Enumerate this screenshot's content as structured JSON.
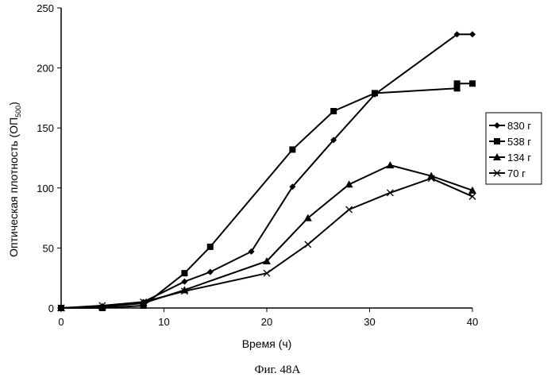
{
  "chart_data": {
    "type": "line",
    "xlabel": "Время (ч)",
    "ylabel_main": "Оптическая плотность (ОП",
    "ylabel_sub": "500",
    "ylabel_end": ")",
    "xlim": [
      0,
      40
    ],
    "ylim": [
      0,
      250
    ],
    "xticks": [
      0,
      10,
      20,
      30,
      40
    ],
    "yticks": [
      0,
      50,
      100,
      150,
      200,
      250
    ],
    "grid": false,
    "legend_position": "right",
    "series": [
      {
        "name": "830 г",
        "marker": "diamond",
        "x": [
          0,
          4,
          8,
          12,
          14.5,
          18.5,
          22.5,
          26.5,
          30.5,
          38.5,
          40
        ],
        "y": [
          0,
          1,
          5,
          22,
          30,
          47,
          101,
          140,
          178,
          228,
          228
        ]
      },
      {
        "name": "538 г",
        "marker": "square",
        "x": [
          0,
          4,
          8,
          12,
          14.5,
          22.5,
          26.5,
          30.5,
          38.5,
          38.5,
          40
        ],
        "y": [
          0,
          0,
          2,
          29,
          51,
          132,
          164,
          179,
          183,
          187,
          187
        ]
      },
      {
        "name": "134 г",
        "marker": "triangle",
        "x": [
          0,
          4,
          8,
          12,
          20,
          24,
          28,
          32,
          36,
          40
        ],
        "y": [
          0,
          1,
          4,
          15,
          39,
          75,
          103,
          119,
          110,
          98
        ]
      },
      {
        "name": "70 г",
        "marker": "x",
        "x": [
          0,
          4,
          8,
          12,
          20,
          24,
          28,
          32,
          36,
          40
        ],
        "y": [
          0,
          2,
          5,
          14,
          29,
          53,
          82,
          96,
          108,
          93
        ]
      }
    ]
  },
  "caption": "Фиг. 48А"
}
